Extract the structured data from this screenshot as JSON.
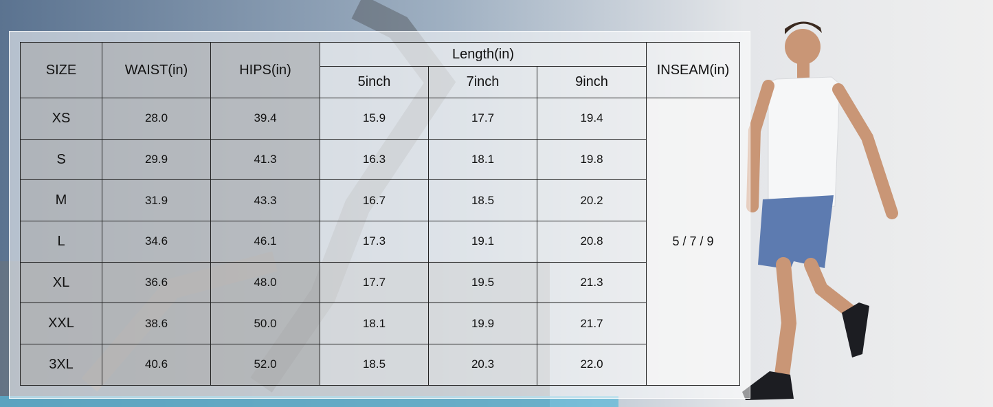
{
  "table": {
    "header": {
      "size": "SIZE",
      "waist": "WAIST(in)",
      "hips": "HIPS(in)",
      "length": "Length(in)",
      "length_sub": [
        "5inch",
        "7inch",
        "9inch"
      ],
      "inseam": "INSEAM(in)"
    },
    "inseam_value": "5 / 7 / 9",
    "rows": [
      [
        "XS",
        "28.0",
        "39.4",
        "15.9",
        "17.7",
        "19.4"
      ],
      [
        "S",
        "29.9",
        "41.3",
        "16.3",
        "18.1",
        "19.8"
      ],
      [
        "M",
        "31.9",
        "43.3",
        "16.7",
        "18.5",
        "20.2"
      ],
      [
        "L",
        "34.6",
        "46.1",
        "17.3",
        "19.1",
        "20.8"
      ],
      [
        "XL",
        "36.6",
        "48.0",
        "17.7",
        "19.5",
        "21.3"
      ],
      [
        "XXL",
        "38.6",
        "50.0",
        "18.1",
        "19.9",
        "21.7"
      ],
      [
        "3XL",
        "40.6",
        "52.0",
        "18.5",
        "20.3",
        "22.0"
      ]
    ]
  }
}
